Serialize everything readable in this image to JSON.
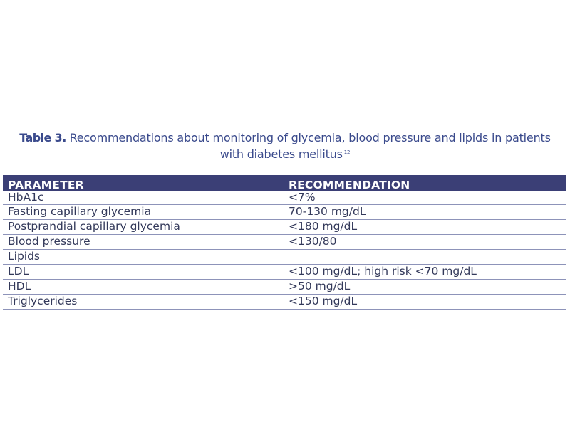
{
  "caption": {
    "label": "Table 3.",
    "text_line1": " Recommendations about monitoring of glycemia, blood pressure and lipids in patients",
    "text_line2": "with diabetes mellitus",
    "reference": "12"
  },
  "table": {
    "headers": {
      "parameter": "PARAMETER",
      "recommendation": "RECOMMENDATION"
    },
    "rows": [
      {
        "parameter": "HbA1c",
        "recommendation": "<7%"
      },
      {
        "parameter": "Fasting capillary glycemia",
        "recommendation": "70-130 mg/dL"
      },
      {
        "parameter": "Postprandial capillary glycemia",
        "recommendation": "<180 mg/dL"
      },
      {
        "parameter": "Blood pressure",
        "recommendation": "<130/80"
      },
      {
        "parameter": "Lipids",
        "recommendation": ""
      },
      {
        "parameter": "LDL",
        "recommendation": "<100 mg/dL; high risk <70 mg/dL"
      },
      {
        "parameter": "HDL",
        "recommendation": ">50 mg/dL"
      },
      {
        "parameter": "Triglycerides",
        "recommendation": "<150 mg/dL"
      }
    ]
  },
  "colors": {
    "header_bg": "#3b3f76",
    "caption_text": "#3a4a8c",
    "row_border": "#8d93b9"
  }
}
